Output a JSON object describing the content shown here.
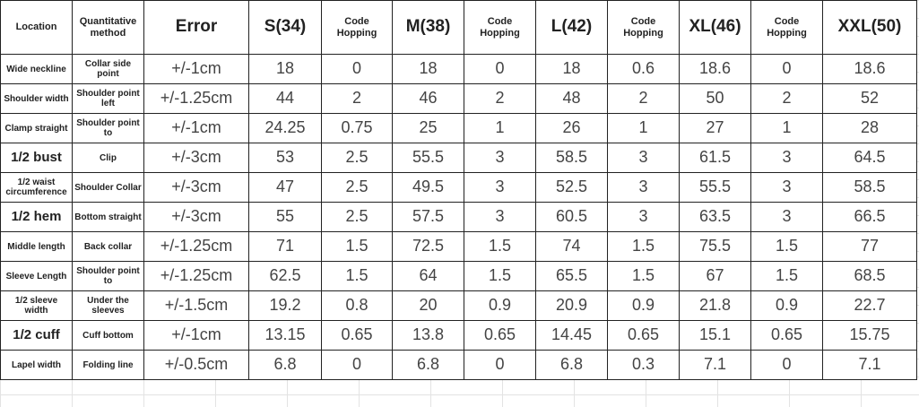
{
  "table": {
    "header": [
      "Location",
      "Quantitative method",
      "Error",
      "S(34)",
      "Code Hopping",
      "M(38)",
      "Code Hopping",
      "L(42)",
      "Code Hopping",
      "XL(46)",
      "Code Hopping",
      "XXL(50)"
    ],
    "rows": [
      [
        "Wide neckline",
        "Collar side point",
        "+/-1cm",
        "18",
        "0",
        "18",
        "0",
        "18",
        "0.6",
        "18.6",
        "0",
        "18.6"
      ],
      [
        "Shoulder width",
        "Shoulder point left",
        "+/-1.25cm",
        "44",
        "2",
        "46",
        "2",
        "48",
        "2",
        "50",
        "2",
        "52"
      ],
      [
        "Clamp straight",
        "Shoulder point to",
        "+/-1cm",
        "24.25",
        "0.75",
        "25",
        "1",
        "26",
        "1",
        "27",
        "1",
        "28"
      ],
      [
        "1/2 bust",
        "Clip",
        "+/-3cm",
        "53",
        "2.5",
        "55.5",
        "3",
        "58.5",
        "3",
        "61.5",
        "3",
        "64.5"
      ],
      [
        "1/2 waist circumference",
        "Shoulder Collar",
        "+/-3cm",
        "47",
        "2.5",
        "49.5",
        "3",
        "52.5",
        "3",
        "55.5",
        "3",
        "58.5"
      ],
      [
        "1/2 hem",
        "Bottom straight",
        "+/-3cm",
        "55",
        "2.5",
        "57.5",
        "3",
        "60.5",
        "3",
        "63.5",
        "3",
        "66.5"
      ],
      [
        "Middle length",
        "Back collar",
        "+/-1.25cm",
        "71",
        "1.5",
        "72.5",
        "1.5",
        "74",
        "1.5",
        "75.5",
        "1.5",
        "77"
      ],
      [
        "Sleeve Length",
        "Shoulder point to",
        "+/-1.25cm",
        "62.5",
        "1.5",
        "64",
        "1.5",
        "65.5",
        "1.5",
        "67",
        "1.5",
        "68.5"
      ],
      [
        "1/2 sleeve width",
        "Under the sleeves",
        "+/-1.5cm",
        "19.2",
        "0.8",
        "20",
        "0.9",
        "20.9",
        "0.9",
        "21.8",
        "0.9",
        "22.7"
      ],
      [
        "1/2 cuff",
        "Cuff bottom",
        "+/-1cm",
        "13.15",
        "0.65",
        "13.8",
        "0.65",
        "14.45",
        "0.65",
        "15.1",
        "0.65",
        "15.75"
      ],
      [
        "Lapel width",
        "Folding line",
        "+/-0.5cm",
        "6.8",
        "0",
        "6.8",
        "0",
        "6.8",
        "0.3",
        "7.1",
        "0",
        "7.1"
      ]
    ]
  }
}
